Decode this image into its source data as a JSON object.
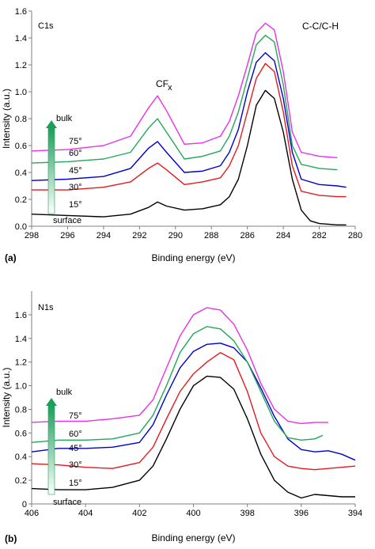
{
  "chart_data": [
    {
      "type": "line",
      "panel_label": "(a)",
      "title": "",
      "inset_label": "C1s",
      "xlabel": "Binding energy (eV)",
      "ylabel": "Intensity (a.u.)",
      "xlim": [
        298,
        280
      ],
      "ylim": [
        0,
        1.6
      ],
      "x_reversed": true,
      "xticks": [
        "298",
        "296",
        "294",
        "292",
        "290",
        "288",
        "286",
        "284",
        "282",
        "280"
      ],
      "yticks": [
        "0.0",
        "0.2",
        "0.4",
        "0.6",
        "0.8",
        "1.0",
        "1.2",
        "1.4",
        "1.6"
      ],
      "grid": false,
      "annotations": {
        "peak1_main": "CF",
        "peak1_sub": "x",
        "peak2": "C-C/C-H",
        "arrow_top": "bulk",
        "arrow_bottom": "surface"
      },
      "series": [
        {
          "name": "15°",
          "color": "#000000",
          "x": [
            298,
            296,
            294,
            292.5,
            291.5,
            291,
            290.5,
            289.5,
            288.5,
            287.5,
            287,
            286.5,
            286,
            285.5,
            285,
            284.5,
            284,
            283.5,
            283,
            282.5,
            282,
            281,
            280.5
          ],
          "y": [
            0.09,
            0.08,
            0.07,
            0.09,
            0.14,
            0.18,
            0.15,
            0.12,
            0.13,
            0.16,
            0.22,
            0.35,
            0.6,
            0.9,
            1.01,
            0.95,
            0.7,
            0.35,
            0.12,
            0.04,
            0.02,
            0.01,
            0.01
          ]
        },
        {
          "name": "30°",
          "color": "#e31a1c",
          "x": [
            298,
            296,
            294,
            292.5,
            291.5,
            291,
            290.5,
            289.5,
            288.5,
            287.5,
            287,
            286.5,
            286,
            285.5,
            285,
            284.5,
            284,
            283.5,
            283,
            282,
            281,
            280.5
          ],
          "y": [
            0.27,
            0.27,
            0.29,
            0.33,
            0.43,
            0.47,
            0.42,
            0.31,
            0.33,
            0.36,
            0.45,
            0.6,
            0.85,
            1.1,
            1.21,
            1.15,
            0.85,
            0.45,
            0.26,
            0.23,
            0.22,
            0.22
          ]
        },
        {
          "name": "45°",
          "color": "#0000cc",
          "x": [
            298,
            296,
            294,
            292.5,
            291.5,
            291,
            290.5,
            289.5,
            288.5,
            287.5,
            287,
            286.5,
            286,
            285.5,
            285,
            284.5,
            284,
            283.5,
            283,
            282,
            281,
            280.5
          ],
          "y": [
            0.34,
            0.35,
            0.37,
            0.43,
            0.58,
            0.63,
            0.55,
            0.4,
            0.41,
            0.45,
            0.55,
            0.72,
            1.0,
            1.22,
            1.29,
            1.23,
            0.95,
            0.55,
            0.35,
            0.31,
            0.3,
            0.29
          ]
        },
        {
          "name": "60°",
          "color": "#22a858",
          "x": [
            298,
            296,
            294,
            292.5,
            291.5,
            291,
            290.5,
            289.5,
            288.5,
            287.5,
            287,
            286.5,
            286,
            285.5,
            285,
            284.5,
            284,
            283.5,
            283,
            282,
            281
          ],
          "y": [
            0.47,
            0.48,
            0.5,
            0.55,
            0.73,
            0.8,
            0.7,
            0.5,
            0.52,
            0.56,
            0.67,
            0.85,
            1.1,
            1.35,
            1.42,
            1.37,
            1.05,
            0.6,
            0.46,
            0.43,
            0.42
          ]
        },
        {
          "name": "75°",
          "color": "#e830e8",
          "x": [
            298,
            296,
            294,
            292.5,
            291.5,
            291,
            290.5,
            289.5,
            288.5,
            287.5,
            287,
            286.5,
            286,
            285.5,
            285,
            284.5,
            284,
            283.5,
            283,
            282,
            281
          ],
          "y": [
            0.56,
            0.57,
            0.6,
            0.67,
            0.88,
            0.97,
            0.86,
            0.61,
            0.62,
            0.67,
            0.78,
            0.97,
            1.2,
            1.44,
            1.51,
            1.46,
            1.15,
            0.7,
            0.55,
            0.52,
            0.51
          ]
        }
      ]
    },
    {
      "type": "line",
      "panel_label": "(b)",
      "title": "",
      "inset_label": "N1s",
      "xlabel": "Binding energy (eV)",
      "ylabel": "Intensity (a.u.)",
      "xlim": [
        406,
        394
      ],
      "ylim": [
        0,
        1.8
      ],
      "x_reversed": true,
      "xticks": [
        "406",
        "404",
        "402",
        "400",
        "398",
        "396",
        "394"
      ],
      "yticks": [
        "0",
        "0.2",
        "0.4",
        "0.6",
        "0.8",
        "1.0",
        "1.2",
        "1.4",
        "1.6"
      ],
      "grid": false,
      "annotations": {
        "arrow_top": "bulk",
        "arrow_bottom": "surface"
      },
      "series": [
        {
          "name": "15°",
          "color": "#000000",
          "x": [
            406,
            405,
            404,
            403,
            402,
            401.5,
            401,
            400.5,
            400,
            399.5,
            399,
            398.5,
            398,
            397.5,
            397,
            396.5,
            396,
            395.5,
            395,
            394.5,
            394
          ],
          "y": [
            0.13,
            0.12,
            0.12,
            0.14,
            0.2,
            0.32,
            0.55,
            0.8,
            1.0,
            1.08,
            1.07,
            0.97,
            0.72,
            0.42,
            0.2,
            0.1,
            0.05,
            0.08,
            0.07,
            0.06,
            0.06
          ]
        },
        {
          "name": "30°",
          "color": "#e31a1c",
          "x": [
            406,
            405,
            404,
            403,
            402,
            401.5,
            401,
            400.5,
            400,
            399.5,
            399,
            398.5,
            398,
            397.5,
            397,
            396.5,
            396,
            395.5,
            395,
            394.5,
            394
          ],
          "y": [
            0.34,
            0.33,
            0.31,
            0.3,
            0.35,
            0.48,
            0.72,
            0.95,
            1.1,
            1.2,
            1.28,
            1.22,
            0.95,
            0.6,
            0.4,
            0.32,
            0.3,
            0.29,
            0.3,
            0.31,
            0.32
          ]
        },
        {
          "name": "45°",
          "color": "#0000cc",
          "x": [
            406,
            405,
            404,
            403,
            402,
            401.5,
            401,
            400.5,
            400,
            399.5,
            399,
            398.5,
            398,
            397.5,
            397,
            396.5,
            396,
            395.5,
            395,
            394.5,
            394
          ],
          "y": [
            0.44,
            0.47,
            0.47,
            0.48,
            0.52,
            0.67,
            0.92,
            1.15,
            1.29,
            1.35,
            1.36,
            1.32,
            1.2,
            0.98,
            0.74,
            0.55,
            0.46,
            0.44,
            0.45,
            0.42,
            0.37
          ]
        },
        {
          "name": "60°",
          "color": "#22a858",
          "x": [
            406,
            405,
            404,
            403,
            402,
            401.5,
            401,
            400.5,
            400,
            399.5,
            399,
            398.5,
            398,
            397.5,
            397,
            396.5,
            396,
            395.5,
            395.2
          ],
          "y": [
            0.52,
            0.54,
            0.54,
            0.55,
            0.6,
            0.75,
            1.0,
            1.28,
            1.44,
            1.5,
            1.48,
            1.38,
            1.2,
            0.95,
            0.7,
            0.56,
            0.54,
            0.55,
            0.58
          ]
        },
        {
          "name": "75°",
          "color": "#e830e8",
          "x": [
            406,
            405,
            404,
            403,
            402,
            401.5,
            401,
            400.5,
            400,
            399.5,
            399,
            398.5,
            398,
            397.5,
            397,
            396.5,
            396,
            395.5,
            395
          ],
          "y": [
            0.69,
            0.7,
            0.7,
            0.72,
            0.75,
            0.88,
            1.15,
            1.42,
            1.6,
            1.66,
            1.64,
            1.52,
            1.3,
            1.02,
            0.8,
            0.7,
            0.68,
            0.69,
            0.69
          ]
        }
      ]
    }
  ]
}
